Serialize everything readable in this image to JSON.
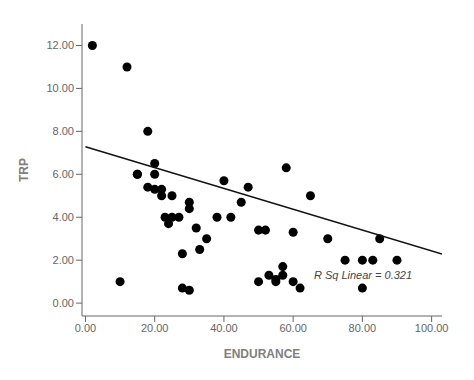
{
  "chart_data": {
    "type": "scatter",
    "xlabel": "ENDURANCE",
    "ylabel": "TRP",
    "xlim": [
      -1,
      103
    ],
    "ylim": [
      -0.6,
      13.0
    ],
    "xticks": [
      {
        "value": 0,
        "label": "0.00"
      },
      {
        "value": 20,
        "label": "20.00"
      },
      {
        "value": 40,
        "label": "40.00"
      },
      {
        "value": 60,
        "label": "60.00"
      },
      {
        "value": 80,
        "label": "80.00"
      },
      {
        "value": 100,
        "label": "100.00"
      }
    ],
    "yticks": [
      {
        "value": 0,
        "label": "0.00"
      },
      {
        "value": 2,
        "label": "2.00"
      },
      {
        "value": 4,
        "label": "4.00"
      },
      {
        "value": 6,
        "label": "6.00"
      },
      {
        "value": 8,
        "label": "8.00"
      },
      {
        "value": 10,
        "label": "10.00"
      },
      {
        "value": 12,
        "label": "12.00"
      }
    ],
    "grid": false,
    "series": [
      {
        "type": "scatter",
        "x": [
          2,
          10,
          12,
          15,
          15,
          18,
          18,
          20,
          20,
          20,
          22,
          22,
          23,
          24,
          25,
          25,
          27,
          28,
          28,
          30,
          30,
          30,
          32,
          33,
          35,
          38,
          40,
          42,
          45,
          47,
          50,
          50,
          52,
          53,
          55,
          55,
          57,
          57,
          58,
          60,
          60,
          62,
          65,
          70,
          75,
          80,
          80,
          83,
          85,
          90
        ],
        "values": [
          12.0,
          1.0,
          11.0,
          6.0,
          6.0,
          8.0,
          5.4,
          5.3,
          6.5,
          6.0,
          5.0,
          5.3,
          4.0,
          3.7,
          4.0,
          5.0,
          4.0,
          2.3,
          0.7,
          4.4,
          4.7,
          0.6,
          3.5,
          2.5,
          3.0,
          4.0,
          5.7,
          4.0,
          4.7,
          5.4,
          1.0,
          3.4,
          3.4,
          1.3,
          1.1,
          1.0,
          1.7,
          1.3,
          6.3,
          3.3,
          1.0,
          0.7,
          5.0,
          3.0,
          2.0,
          2.0,
          0.7,
          2.0,
          3.0,
          2.0
        ]
      },
      {
        "type": "line",
        "x": [
          0,
          103
        ],
        "values": [
          7.28,
          2.2845
        ],
        "color": "#111111"
      }
    ],
    "annotations": [
      {
        "text": "R Sq Linear = 0.321",
        "x": 66,
        "y": 1.3
      }
    ]
  }
}
